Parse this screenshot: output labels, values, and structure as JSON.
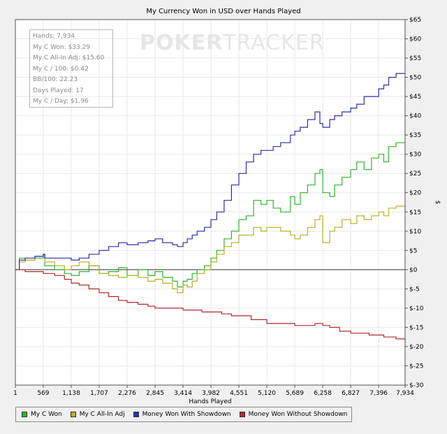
{
  "chart_data": {
    "type": "line",
    "title": "My Currency Won in USD over Hands Played",
    "xlabel": "Hands Played",
    "ylabel": "$",
    "xlim": [
      1,
      7934
    ],
    "ylim": [
      -30,
      65
    ],
    "x_ticks": [
      1,
      569,
      1138,
      1707,
      2276,
      2845,
      3414,
      3982,
      4551,
      5120,
      5689,
      6258,
      6827,
      7396,
      7934
    ],
    "x_tick_labels": [
      "1",
      "569",
      "1,138",
      "1,707",
      "2,276",
      "2,845",
      "3,414",
      "3,982",
      "4,551",
      "5,120",
      "5,689",
      "6,258",
      "6,827",
      "7,396",
      "7,934"
    ],
    "y_ticks": [
      -30,
      -25,
      -20,
      -15,
      -10,
      -5,
      0,
      5,
      10,
      15,
      20,
      25,
      30,
      35,
      40,
      45,
      50,
      55,
      60,
      65
    ],
    "y_tick_labels": [
      "$-30",
      "$-25",
      "$-20",
      "$-15",
      "$-10",
      "$-5",
      "$0",
      "$5",
      "$10",
      "$15",
      "$20",
      "$25",
      "$30",
      "$35",
      "$40",
      "$45",
      "$50",
      "$55",
      "$60",
      "$65"
    ],
    "grid": true,
    "legend_position": "bottom",
    "series": [
      {
        "name": "My C Won",
        "color": "#2fb32f",
        "points": [
          [
            1,
            0
          ],
          [
            80,
            3
          ],
          [
            200,
            2.5
          ],
          [
            400,
            3
          ],
          [
            569,
            4
          ],
          [
            600,
            1
          ],
          [
            800,
            0
          ],
          [
            1000,
            -1
          ],
          [
            1138,
            -1.5
          ],
          [
            1300,
            -0.5
          ],
          [
            1500,
            1
          ],
          [
            1707,
            -1
          ],
          [
            1900,
            -0.5
          ],
          [
            2100,
            0.5
          ],
          [
            2276,
            -1.5
          ],
          [
            2500,
            0
          ],
          [
            2700,
            -1.5
          ],
          [
            2845,
            -0.5
          ],
          [
            3000,
            -2
          ],
          [
            3200,
            -3
          ],
          [
            3300,
            -4.5
          ],
          [
            3414,
            -3
          ],
          [
            3500,
            -2.5
          ],
          [
            3600,
            -1
          ],
          [
            3700,
            0
          ],
          [
            3850,
            1
          ],
          [
            3982,
            3
          ],
          [
            4100,
            5
          ],
          [
            4250,
            8
          ],
          [
            4400,
            10
          ],
          [
            4551,
            13
          ],
          [
            4700,
            14
          ],
          [
            4850,
            18
          ],
          [
            5000,
            17
          ],
          [
            5120,
            18
          ],
          [
            5250,
            16
          ],
          [
            5400,
            15
          ],
          [
            5600,
            19
          ],
          [
            5689,
            17
          ],
          [
            5800,
            20
          ],
          [
            5950,
            22
          ],
          [
            6100,
            25
          ],
          [
            6200,
            26
          ],
          [
            6258,
            20
          ],
          [
            6400,
            19
          ],
          [
            6500,
            22
          ],
          [
            6650,
            24
          ],
          [
            6827,
            26
          ],
          [
            6950,
            28
          ],
          [
            7100,
            26
          ],
          [
            7250,
            29
          ],
          [
            7396,
            30
          ],
          [
            7500,
            28
          ],
          [
            7600,
            32
          ],
          [
            7750,
            33
          ],
          [
            7934,
            33
          ]
        ]
      },
      {
        "name": "My C All-In Adj",
        "color": "#b5b023",
        "points": [
          [
            1,
            0
          ],
          [
            80,
            2
          ],
          [
            200,
            2.5
          ],
          [
            400,
            3.5
          ],
          [
            569,
            4
          ],
          [
            600,
            2
          ],
          [
            800,
            1
          ],
          [
            1000,
            0
          ],
          [
            1138,
            1
          ],
          [
            1300,
            2
          ],
          [
            1500,
            1
          ],
          [
            1707,
            -1
          ],
          [
            1900,
            -1.5
          ],
          [
            2100,
            -2
          ],
          [
            2276,
            -1.5
          ],
          [
            2500,
            -2
          ],
          [
            2700,
            -3
          ],
          [
            2845,
            -2.5
          ],
          [
            3000,
            -3.5
          ],
          [
            3200,
            -5
          ],
          [
            3300,
            -6
          ],
          [
            3414,
            -4
          ],
          [
            3500,
            -4.5
          ],
          [
            3600,
            -3
          ],
          [
            3700,
            -1
          ],
          [
            3850,
            0
          ],
          [
            3982,
            2
          ],
          [
            4100,
            4
          ],
          [
            4250,
            6
          ],
          [
            4400,
            7
          ],
          [
            4551,
            9
          ],
          [
            4700,
            9
          ],
          [
            4850,
            11
          ],
          [
            5000,
            10
          ],
          [
            5120,
            11
          ],
          [
            5250,
            11
          ],
          [
            5400,
            10
          ],
          [
            5600,
            9
          ],
          [
            5689,
            8
          ],
          [
            5800,
            9
          ],
          [
            5950,
            11
          ],
          [
            6100,
            13
          ],
          [
            6200,
            14
          ],
          [
            6258,
            7
          ],
          [
            6400,
            10
          ],
          [
            6500,
            11
          ],
          [
            6650,
            13
          ],
          [
            6827,
            12
          ],
          [
            6950,
            14
          ],
          [
            7100,
            13
          ],
          [
            7250,
            14
          ],
          [
            7396,
            15
          ],
          [
            7500,
            14
          ],
          [
            7600,
            16
          ],
          [
            7750,
            16.5
          ],
          [
            7934,
            15
          ]
        ]
      },
      {
        "name": "Money Won With Showdown",
        "color": "#2e2ea8",
        "points": [
          [
            1,
            0
          ],
          [
            80,
            2.5
          ],
          [
            200,
            3
          ],
          [
            400,
            3.5
          ],
          [
            569,
            4
          ],
          [
            600,
            3
          ],
          [
            800,
            3
          ],
          [
            1000,
            3
          ],
          [
            1138,
            2.5
          ],
          [
            1300,
            3
          ],
          [
            1500,
            4
          ],
          [
            1707,
            5
          ],
          [
            1900,
            6
          ],
          [
            2100,
            7
          ],
          [
            2276,
            6.5
          ],
          [
            2500,
            7
          ],
          [
            2700,
            7.5
          ],
          [
            2845,
            8
          ],
          [
            3000,
            7
          ],
          [
            3200,
            6.5
          ],
          [
            3300,
            6
          ],
          [
            3414,
            7
          ],
          [
            3500,
            8
          ],
          [
            3600,
            9
          ],
          [
            3700,
            10
          ],
          [
            3850,
            11
          ],
          [
            3982,
            13
          ],
          [
            4100,
            15
          ],
          [
            4250,
            18
          ],
          [
            4400,
            22
          ],
          [
            4551,
            25
          ],
          [
            4700,
            28
          ],
          [
            4850,
            30
          ],
          [
            5000,
            31
          ],
          [
            5120,
            31
          ],
          [
            5250,
            32
          ],
          [
            5400,
            33
          ],
          [
            5600,
            35
          ],
          [
            5689,
            36
          ],
          [
            5800,
            37
          ],
          [
            5950,
            39
          ],
          [
            6100,
            41
          ],
          [
            6200,
            38
          ],
          [
            6258,
            37
          ],
          [
            6400,
            39
          ],
          [
            6500,
            40
          ],
          [
            6650,
            41
          ],
          [
            6827,
            42
          ],
          [
            6950,
            43
          ],
          [
            7100,
            45
          ],
          [
            7250,
            45
          ],
          [
            7396,
            47
          ],
          [
            7500,
            48
          ],
          [
            7600,
            50
          ],
          [
            7750,
            51
          ],
          [
            7934,
            51
          ]
        ]
      },
      {
        "name": "Money Won Without Showdown",
        "color": "#b22c2c",
        "points": [
          [
            1,
            0
          ],
          [
            200,
            -0.5
          ],
          [
            400,
            -0.5
          ],
          [
            569,
            -1
          ],
          [
            800,
            -1.5
          ],
          [
            1000,
            -2.5
          ],
          [
            1138,
            -3.5
          ],
          [
            1300,
            -4
          ],
          [
            1500,
            -5
          ],
          [
            1707,
            -6
          ],
          [
            1900,
            -7
          ],
          [
            2100,
            -8
          ],
          [
            2276,
            -8.5
          ],
          [
            2500,
            -9
          ],
          [
            2700,
            -9.5
          ],
          [
            2845,
            -10
          ],
          [
            3000,
            -10
          ],
          [
            3200,
            -10
          ],
          [
            3414,
            -10.5
          ],
          [
            3600,
            -10.5
          ],
          [
            3800,
            -11
          ],
          [
            3982,
            -11
          ],
          [
            4200,
            -11.5
          ],
          [
            4400,
            -12
          ],
          [
            4551,
            -12
          ],
          [
            4800,
            -13
          ],
          [
            5000,
            -13
          ],
          [
            5120,
            -14
          ],
          [
            5300,
            -14
          ],
          [
            5500,
            -14
          ],
          [
            5689,
            -14.5
          ],
          [
            5900,
            -14.5
          ],
          [
            6100,
            -14
          ],
          [
            6258,
            -14.5
          ],
          [
            6400,
            -15
          ],
          [
            6600,
            -16
          ],
          [
            6827,
            -16.5
          ],
          [
            7000,
            -16.5
          ],
          [
            7200,
            -17
          ],
          [
            7396,
            -17
          ],
          [
            7500,
            -17.5
          ],
          [
            7600,
            -17.5
          ],
          [
            7750,
            -18
          ],
          [
            7934,
            -18.5
          ]
        ]
      }
    ]
  },
  "stats": [
    "Hands: 7,934",
    "My C Won: $33.29",
    "My C All-In Adj: $15.60",
    "My C / 100: $0.42",
    "BB/100: 22.23",
    "Days Played: 17",
    "My C / Day: $1.96"
  ],
  "watermark": {
    "part1": "POKER",
    "part2": "TRACKER"
  }
}
